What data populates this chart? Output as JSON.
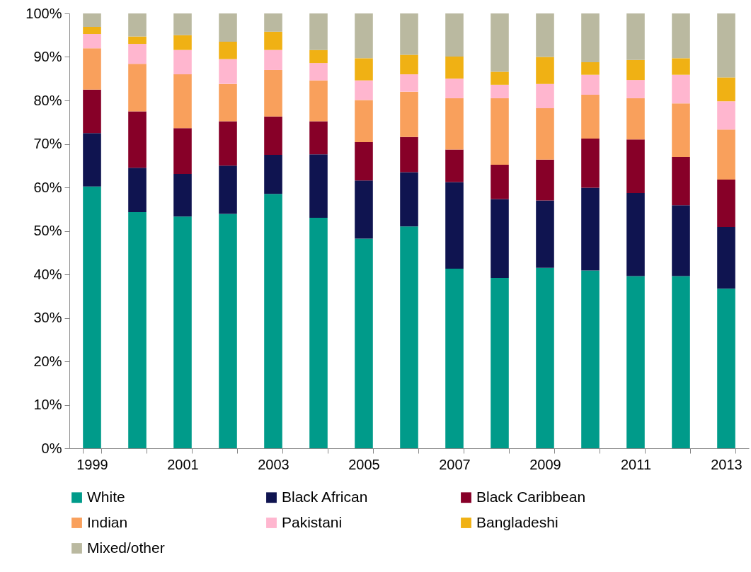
{
  "chart_data": {
    "type": "bar",
    "stacked": true,
    "legend": "bottom",
    "grid": false,
    "categories": [
      "1999",
      null,
      "2001",
      null,
      "2003",
      null,
      "2005",
      null,
      "2007",
      null,
      "2009",
      null,
      "2011",
      null,
      "2013"
    ],
    "ylim": [
      0,
      100
    ],
    "yticks": [
      {
        "value": 0,
        "label": "0%"
      },
      {
        "value": 10,
        "label": "10%"
      },
      {
        "value": 20,
        "label": "20%"
      },
      {
        "value": 30,
        "label": "30%"
      },
      {
        "value": 40,
        "label": "40%"
      },
      {
        "value": 50,
        "label": "50%"
      },
      {
        "value": 60,
        "label": "60%"
      },
      {
        "value": 70,
        "label": "70%"
      },
      {
        "value": 80,
        "label": "80%"
      },
      {
        "value": 90,
        "label": "90%"
      },
      {
        "value": 100,
        "label": "100%"
      }
    ],
    "series": [
      {
        "name": "White",
        "color": "#009b8a",
        "values": [
          60.2,
          54.3,
          53.3,
          53.9,
          58.5,
          53.0,
          48.2,
          51.0,
          41.3,
          39.2,
          41.5,
          40.9,
          39.6,
          39.6,
          36.7
        ]
      },
      {
        "name": "Black African",
        "color": "#0f1450",
        "values": [
          12.3,
          10.2,
          9.8,
          11.1,
          9.0,
          14.6,
          13.4,
          12.5,
          19.9,
          18.1,
          15.5,
          19.0,
          19.1,
          16.3,
          14.2
        ]
      },
      {
        "name": "Black Caribbean",
        "color": "#870028",
        "values": [
          10.0,
          13.0,
          10.5,
          10.2,
          8.8,
          7.6,
          8.8,
          8.1,
          7.5,
          7.9,
          9.4,
          11.3,
          12.3,
          11.1,
          10.9
        ]
      },
      {
        "name": "Indian",
        "color": "#f9a05c",
        "values": [
          9.5,
          10.9,
          12.4,
          8.6,
          10.7,
          9.4,
          9.7,
          10.4,
          11.8,
          15.3,
          11.8,
          10.1,
          9.5,
          12.3,
          11.5
        ]
      },
      {
        "name": "Pakistani",
        "color": "#ffb6cf",
        "values": [
          3.3,
          4.6,
          5.6,
          5.7,
          4.6,
          4.0,
          4.5,
          4.0,
          4.5,
          3.1,
          5.6,
          4.6,
          4.2,
          6.6,
          6.5
        ]
      },
      {
        "name": "Bangladeshi",
        "color": "#f0b114",
        "values": [
          1.6,
          1.7,
          3.4,
          4.0,
          4.2,
          3.0,
          5.1,
          4.5,
          5.1,
          3.0,
          6.2,
          2.9,
          4.6,
          3.8,
          5.5
        ]
      },
      {
        "name": "Mixed/other",
        "color": "#bab9a0",
        "values": [
          3.1,
          5.3,
          5.0,
          6.5,
          4.2,
          8.4,
          10.3,
          9.5,
          9.9,
          13.4,
          10.0,
          11.2,
          10.7,
          10.3,
          14.7
        ]
      }
    ]
  }
}
